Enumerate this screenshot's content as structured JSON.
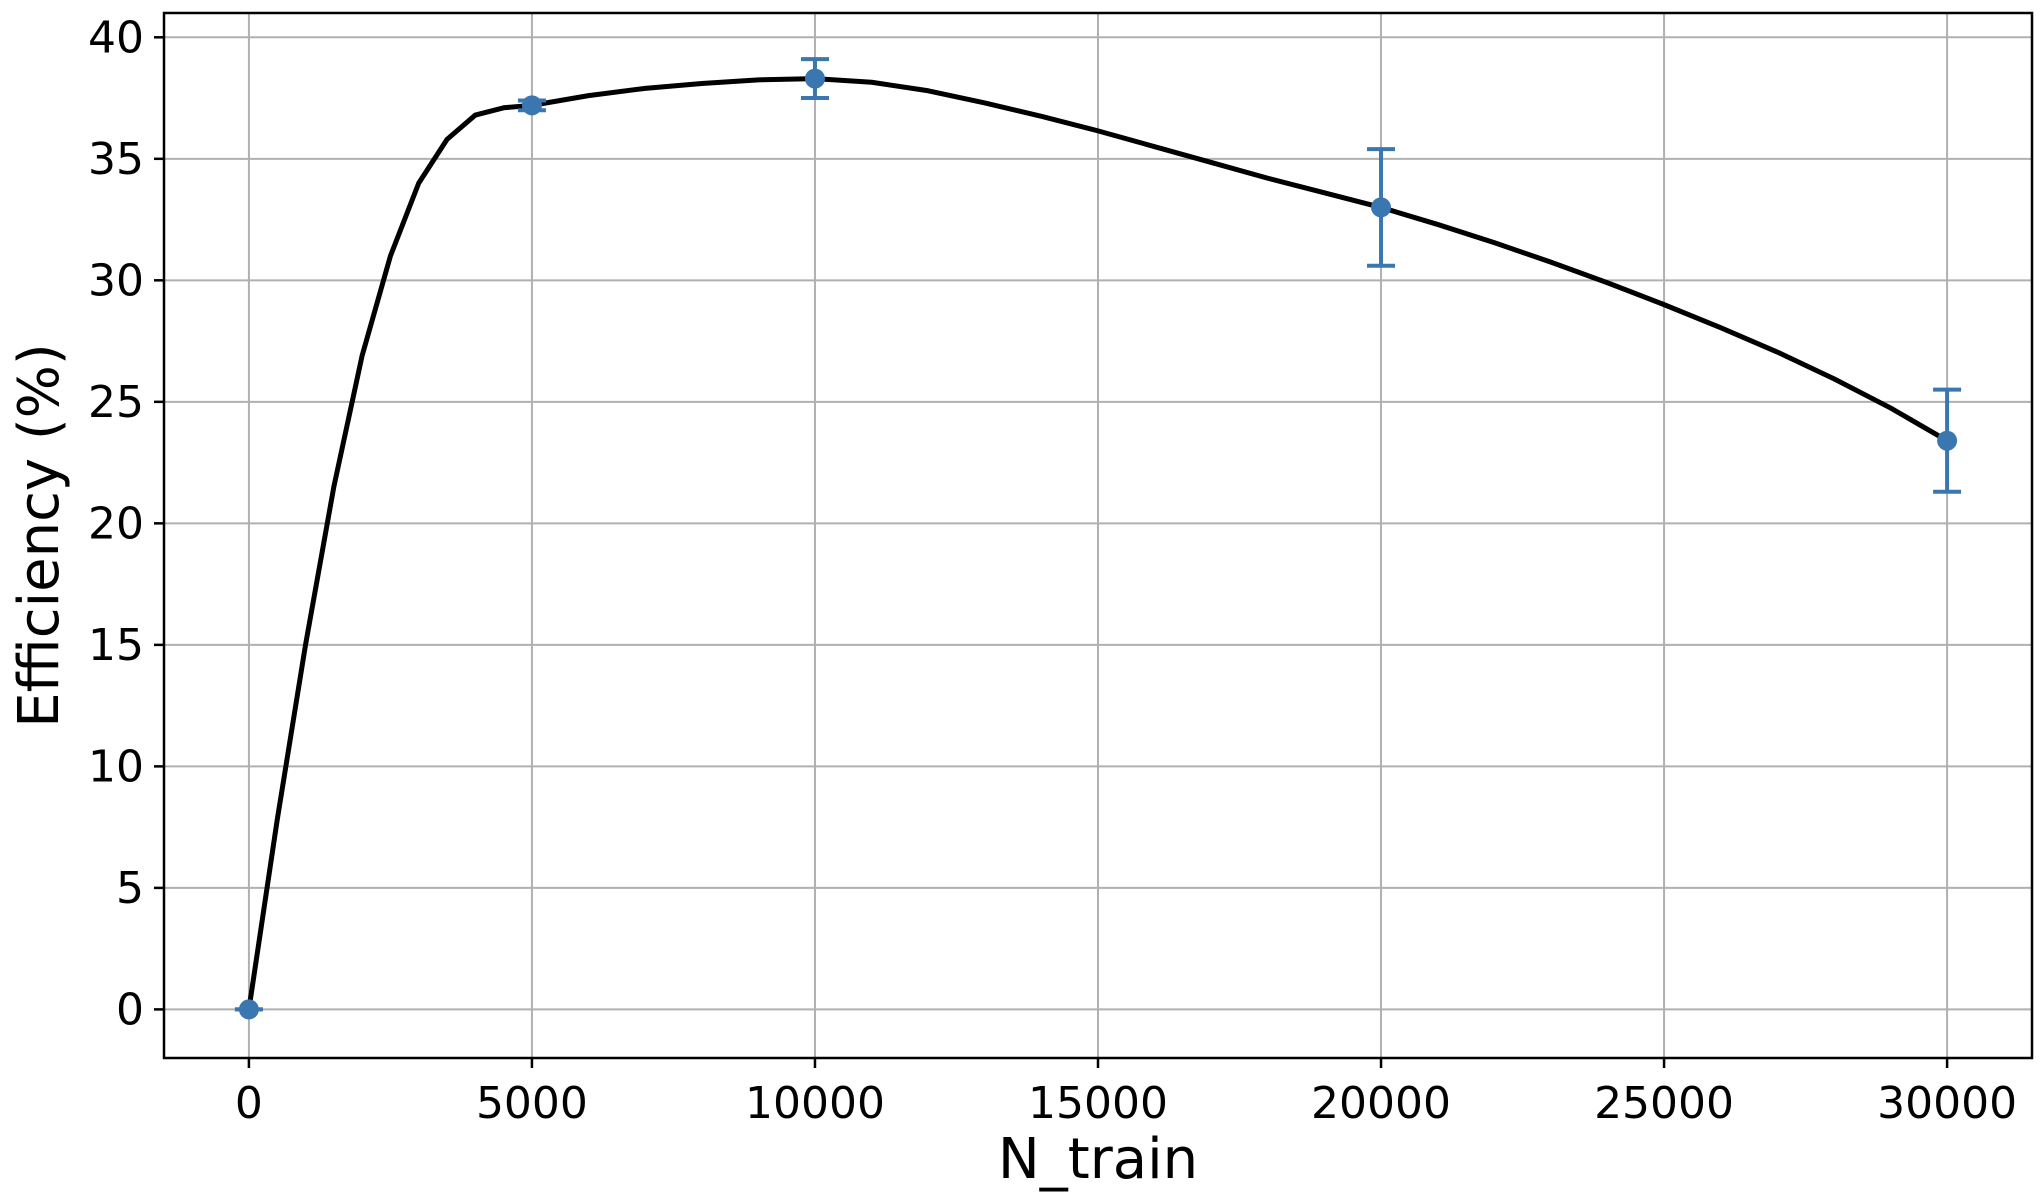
{
  "chart_data": {
    "type": "line",
    "title": "",
    "xlabel": "N_train",
    "ylabel": "Efficiency (%)",
    "xlim": [
      -1500,
      31500
    ],
    "ylim": [
      -2,
      41
    ],
    "xticks": [
      0,
      5000,
      10000,
      15000,
      20000,
      25000,
      30000
    ],
    "yticks": [
      0,
      5,
      10,
      15,
      20,
      25,
      30,
      35,
      40
    ],
    "grid": true,
    "points": [
      {
        "x": 0,
        "y": 0.0,
        "err": 0.0
      },
      {
        "x": 5000,
        "y": 37.2,
        "err": 0.2
      },
      {
        "x": 10000,
        "y": 38.3,
        "err": 0.8
      },
      {
        "x": 20000,
        "y": 33.0,
        "err": 2.4
      },
      {
        "x": 30000,
        "y": 23.4,
        "err": 2.1
      }
    ],
    "curve": {
      "x": [
        0,
        500,
        1000,
        1500,
        2000,
        2500,
        3000,
        3500,
        4000,
        4500,
        5000,
        6000,
        7000,
        8000,
        9000,
        10000,
        11000,
        12000,
        13000,
        14000,
        15000,
        16000,
        17000,
        18000,
        19000,
        20000,
        21000,
        22000,
        23000,
        24000,
        25000,
        26000,
        27000,
        28000,
        29000,
        30000
      ],
      "y": [
        0.0,
        7.8,
        15.0,
        21.5,
        26.9,
        31.0,
        34.0,
        35.8,
        36.8,
        37.1,
        37.2,
        37.6,
        37.9,
        38.1,
        38.25,
        38.3,
        38.15,
        37.8,
        37.3,
        36.75,
        36.15,
        35.5,
        34.85,
        34.2,
        33.6,
        33.0,
        32.3,
        31.55,
        30.75,
        29.9,
        29.0,
        28.05,
        27.05,
        25.95,
        24.75,
        23.4
      ]
    },
    "colors": {
      "line": "#000000",
      "points": "#3a76b0"
    }
  }
}
